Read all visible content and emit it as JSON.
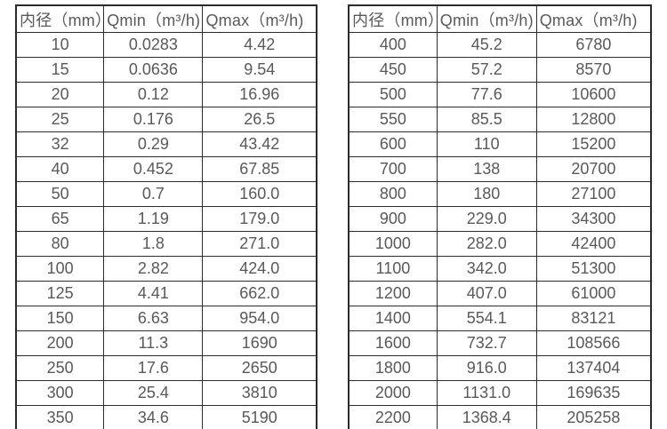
{
  "page": {
    "background_color": "#ffffff",
    "border_color": "#2b2b2b",
    "text_color": "#595959"
  },
  "tables": [
    {
      "name": "flow-rate-table-small-diameters",
      "headers": [
        "内径（mm）",
        "Qmin（m³/h)",
        "Qmax（m³/h)"
      ],
      "rows": [
        [
          "10",
          "0.0283",
          "4.42"
        ],
        [
          "15",
          "0.0636",
          "9.54"
        ],
        [
          "20",
          "0.12",
          "16.96"
        ],
        [
          "25",
          "0.176",
          "26.5"
        ],
        [
          "32",
          "0.29",
          "43.42"
        ],
        [
          "40",
          "0.452",
          "67.85"
        ],
        [
          "50",
          "0.7",
          "160.0"
        ],
        [
          "65",
          "1.19",
          "179.0"
        ],
        [
          "80",
          "1.8",
          "271.0"
        ],
        [
          "100",
          "2.82",
          "424.0"
        ],
        [
          "125",
          "4.41",
          "662.0"
        ],
        [
          "150",
          "6.63",
          "954.0"
        ],
        [
          "200",
          "11.3",
          "1690"
        ],
        [
          "250",
          "17.6",
          "2650"
        ],
        [
          "300",
          "25.4",
          "3810"
        ],
        [
          "350",
          "34.6",
          "5190"
        ]
      ]
    },
    {
      "name": "flow-rate-table-large-diameters",
      "headers": [
        "内径（mm）",
        "Qmin（m³/h)",
        "Qmax（m³/h)"
      ],
      "rows": [
        [
          "400",
          "45.2",
          "6780"
        ],
        [
          "450",
          "57.2",
          "8570"
        ],
        [
          "500",
          "77.6",
          "10600"
        ],
        [
          "550",
          "85.5",
          "12800"
        ],
        [
          "600",
          "110",
          "15200"
        ],
        [
          "700",
          "138",
          "20700"
        ],
        [
          "800",
          "180",
          "27100"
        ],
        [
          "900",
          "229.0",
          "34300"
        ],
        [
          "1000",
          "282.0",
          "42400"
        ],
        [
          "1100",
          "342.0",
          "51300"
        ],
        [
          "1200",
          "407.0",
          "61000"
        ],
        [
          "1400",
          "554.1",
          "83121"
        ],
        [
          "1600",
          "732.7",
          "108566"
        ],
        [
          "1800",
          "916.0",
          "137404"
        ],
        [
          "2000",
          "1131.0",
          "169635"
        ],
        [
          "2200",
          "1368.4",
          "205258"
        ]
      ]
    }
  ]
}
